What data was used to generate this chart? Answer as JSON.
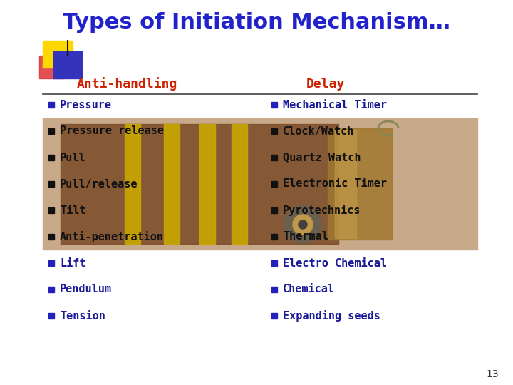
{
  "title": "Types of Initiation Mechanism…",
  "title_color": "#2222cc",
  "title_fontsize": 22,
  "left_header": "Anti-handling",
  "right_header": "Delay",
  "header_color": "#cc2200",
  "left_items": [
    "Pressure",
    "Pressure release",
    "Pull",
    "Pull/release",
    "Tilt",
    "Anti-penetration",
    "Lift",
    "Pendulum",
    "Tension"
  ],
  "right_items": [
    "Mechanical Timer",
    "Clock/Watch",
    "Quartz Watch",
    "Electronic Timer",
    "Pyrotechnics",
    "Thermal",
    "Electro Chemical",
    "Chemical",
    "Expanding seeds"
  ],
  "bullet_color_outside": "#2222bb",
  "bullet_color_inside": "#111111",
  "text_color_outside": "#1a1a99",
  "text_color_inside": "#111111",
  "image_bg_color": "#c8aa8a",
  "slide_bg_color": "#ffffff",
  "page_number": "13"
}
